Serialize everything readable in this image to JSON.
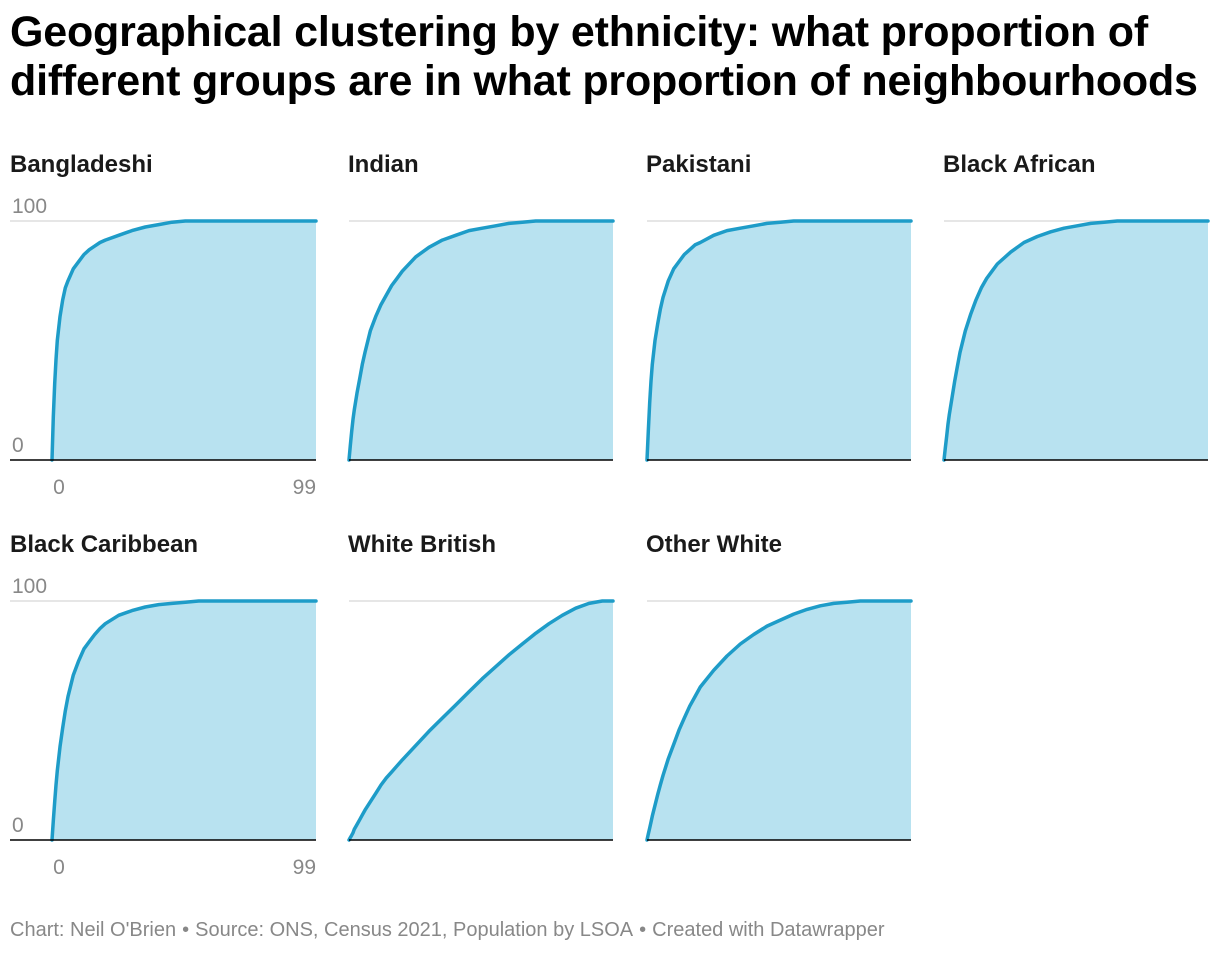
{
  "title": "Geographical clustering by ethnicity: what proportion of different groups are in what proportion of neighbourhoods",
  "footer": {
    "chart": "Chart: Neil O'Brien",
    "separator": "•",
    "source": "Source: ONS, Census 2021, Population by LSOA",
    "created": "Created with Datawrapper"
  },
  "colors": {
    "line": "#1e9cc8",
    "fill": "#b8e2f0",
    "grid": "#dddddd",
    "axis": "#000000",
    "tick": "#888888"
  },
  "chart_data": {
    "type": "area",
    "layout": "small-multiples",
    "xlim": [
      0,
      99
    ],
    "ylim": [
      0,
      100
    ],
    "x_ticks": [
      "0",
      "99"
    ],
    "y_ticks": [
      "0",
      "100"
    ],
    "x": [
      0,
      0.5,
      1,
      1.5,
      2,
      3,
      4,
      5,
      6,
      8,
      10,
      12,
      14,
      16,
      18,
      20,
      25,
      30,
      35,
      40,
      45,
      50,
      55,
      60,
      65,
      70,
      75,
      80,
      85,
      90,
      95,
      99
    ],
    "series": [
      {
        "name": "Bangladeshi",
        "values": [
          0,
          18,
          32,
          42,
          50,
          60,
          67,
          72,
          75,
          80,
          83,
          86,
          88,
          89.5,
          91,
          92,
          94,
          96,
          97.5,
          98.5,
          99.5,
          100,
          100,
          100,
          100,
          100,
          100,
          100,
          100,
          100,
          100,
          100
        ]
      },
      {
        "name": "Indian",
        "values": [
          0,
          6,
          12,
          17,
          21,
          28,
          34,
          40,
          45,
          54,
          60,
          65,
          69,
          73,
          76,
          79,
          85,
          89,
          92,
          94,
          96,
          97,
          98,
          99,
          99.5,
          100,
          100,
          100,
          100,
          100,
          100,
          100
        ]
      },
      {
        "name": "Pakistani",
        "values": [
          0,
          12,
          24,
          33,
          40,
          50,
          57,
          63,
          68,
          75,
          80,
          83,
          86,
          88,
          90,
          91,
          94,
          96,
          97,
          98,
          99,
          99.5,
          100,
          100,
          100,
          100,
          100,
          100,
          100,
          100,
          100,
          100
        ]
      },
      {
        "name": "Black African",
        "values": [
          0,
          5,
          10,
          15,
          19,
          26,
          33,
          39,
          45,
          54,
          61,
          67,
          72,
          76,
          79,
          82,
          87,
          91,
          93.5,
          95.5,
          97,
          98,
          99,
          99.5,
          100,
          100,
          100,
          100,
          100,
          100,
          100,
          100
        ]
      },
      {
        "name": "Black Caribbean",
        "values": [
          0,
          8,
          16,
          23,
          29,
          39,
          47,
          54,
          60,
          69,
          75,
          80,
          83,
          86,
          88.5,
          90.5,
          94,
          96,
          97.5,
          98.5,
          99,
          99.5,
          100,
          100,
          100,
          100,
          100,
          100,
          100,
          100,
          100,
          100
        ]
      },
      {
        "name": "White British",
        "values": [
          0,
          1,
          2,
          3,
          4.5,
          6.5,
          8.5,
          10.5,
          12.5,
          16,
          19.5,
          23,
          26,
          28.5,
          31,
          33.5,
          39.5,
          45.5,
          51,
          56.5,
          62,
          67.5,
          72.5,
          77.5,
          82,
          86.5,
          90.5,
          94,
          97,
          99,
          100,
          100
        ]
      },
      {
        "name": "Other White",
        "values": [
          0,
          2.5,
          5,
          7.5,
          10,
          14.5,
          19,
          23,
          27,
          34,
          40,
          46,
          51,
          56,
          60,
          64,
          71,
          77,
          82,
          86,
          89.5,
          92,
          94.5,
          96.5,
          98,
          99,
          99.5,
          100,
          100,
          100,
          100,
          100
        ]
      }
    ]
  }
}
